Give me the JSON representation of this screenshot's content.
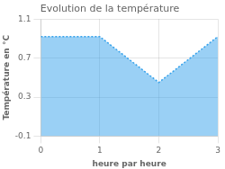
{
  "chart_data": {
    "type": "area",
    "title": "Evolution de la température",
    "xlabel": "heure par heure",
    "ylabel": "Température en °C",
    "x": [
      0,
      1,
      2,
      3
    ],
    "values": [
      0.92,
      0.92,
      0.45,
      0.92
    ],
    "xlim": [
      0,
      3
    ],
    "ylim": [
      -0.1,
      1.1
    ],
    "xticks": [
      0,
      1,
      2,
      3
    ],
    "yticks": [
      -0.1,
      0.3,
      0.7,
      1.1
    ],
    "grid": true,
    "line_style": "dotted"
  }
}
